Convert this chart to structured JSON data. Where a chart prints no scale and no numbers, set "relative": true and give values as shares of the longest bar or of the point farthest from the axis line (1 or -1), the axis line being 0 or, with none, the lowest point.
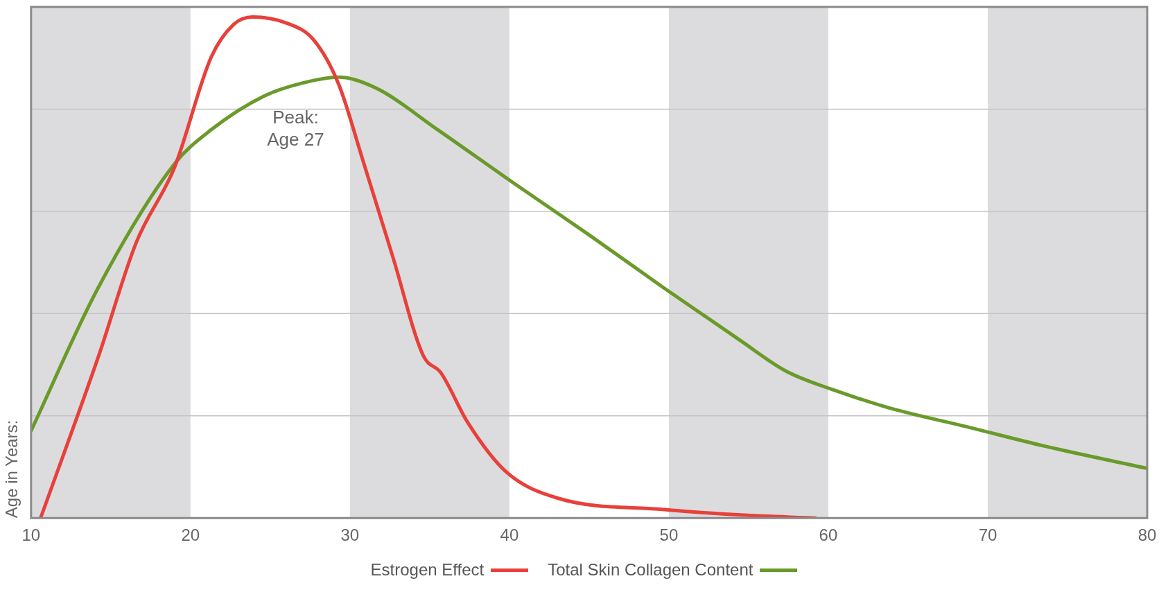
{
  "chart_data": {
    "type": "line",
    "relative": true,
    "ylabel": "Age in Years:",
    "xlim": [
      10,
      80
    ],
    "xticks": [
      10,
      20,
      30,
      40,
      50,
      60,
      70,
      80
    ],
    "grid": "y",
    "legend": "bottom",
    "marker": "none",
    "line_style": "solid",
    "annotations": [
      "Peak:\nAge 27"
    ],
    "bands": [
      {
        "axis": "x",
        "from": 10,
        "to": 20,
        "color": "#dcdcde"
      },
      {
        "axis": "x",
        "from": 30,
        "to": 40,
        "color": "#dcdcde"
      },
      {
        "axis": "x",
        "from": 50,
        "to": 60,
        "color": "#dcdcde"
      },
      {
        "axis": "x",
        "from": 70,
        "to": 80,
        "color": "#dcdcde"
      }
    ],
    "series": [
      {
        "name": "Estrogen Effect",
        "color": "#e8403a",
        "x": [
          10.6,
          14.2,
          16.6,
          19.0,
          21.3,
          22.7,
          23.9,
          26.0,
          27.7,
          29.3,
          30.8,
          32.7,
          34.6,
          35.7,
          37.4,
          39.8,
          43.1,
          49.7,
          54.5,
          59.2
        ],
        "values": [
          0,
          0.32,
          0.55,
          0.7,
          0.92,
          0.985,
          1,
          0.988,
          0.955,
          0.865,
          0.715,
          0.52,
          0.324,
          0.29,
          0.19,
          0.092,
          0.039,
          0.017,
          0.006,
          0
        ]
      },
      {
        "name": "Total Skin Collagen Content",
        "color": "#6a9a2a",
        "x": [
          10,
          14.2,
          19.0,
          21.3,
          24.6,
          27.0,
          29.3,
          31.7,
          35.5,
          40.2,
          45.0,
          49.7,
          54.5,
          57.3,
          60.2,
          63.9,
          68.7,
          73.5,
          80
        ],
        "values": [
          0.174,
          0.459,
          0.707,
          0.775,
          0.842,
          0.868,
          0.88,
          0.857,
          0.775,
          0.67,
          0.565,
          0.459,
          0.354,
          0.294,
          0.257,
          0.219,
          0.182,
          0.144,
          0.099
        ]
      }
    ]
  }
}
